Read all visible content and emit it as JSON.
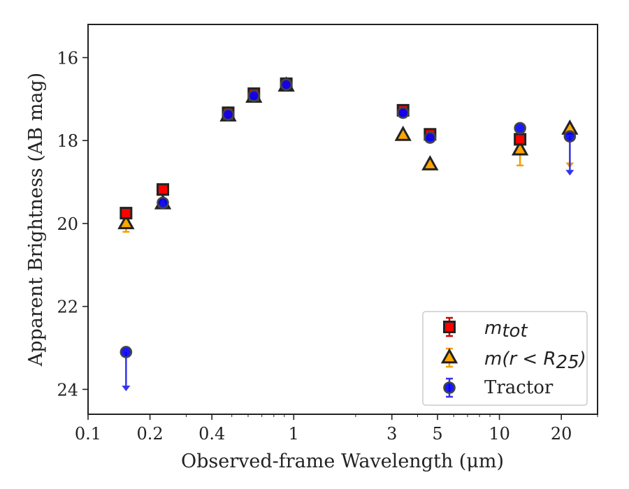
{
  "chart_data": {
    "type": "scatter",
    "xlabel": "Observed-frame Wavelength (μm)",
    "ylabel": "Apparent Brightness (AB mag)",
    "x_scale": "log",
    "xlim": [
      0.1,
      30
    ],
    "ylim": [
      24.6,
      15.2
    ],
    "y_inverted": true,
    "x_ticks": [
      0.1,
      0.2,
      0.4,
      1,
      3,
      5,
      10,
      20
    ],
    "x_tick_labels": [
      "0.1",
      "0.2",
      "0.4",
      "1",
      "3",
      "5",
      "10",
      "20"
    ],
    "y_ticks": [
      16,
      18,
      20,
      22,
      24
    ],
    "y_tick_labels": [
      "16",
      "18",
      "20",
      "22",
      "24"
    ],
    "grid": false,
    "legend_position": "lower-right",
    "series": [
      {
        "name": "m_tot",
        "legend_main": "m",
        "legend_sub": "tot",
        "marker": "square",
        "face_color": "#ff0000",
        "errorbar_color": "#cc0000",
        "points": [
          {
            "x": 0.153,
            "y": 19.75
          },
          {
            "x": 0.231,
            "y": 19.18
          },
          {
            "x": 0.48,
            "y": 17.33
          },
          {
            "x": 0.64,
            "y": 16.87
          },
          {
            "x": 0.92,
            "y": 16.63
          },
          {
            "x": 3.4,
            "y": 17.27
          },
          {
            "x": 4.6,
            "y": 17.85
          },
          {
            "x": 12.6,
            "y": 17.97,
            "yerr": 0.1
          }
        ]
      },
      {
        "name": "m(r < R25)",
        "legend_main": "m(r < R",
        "legend_sub": "25",
        "legend_end": ")",
        "marker": "triangle",
        "face_color": "#ffa500",
        "errorbar_color": "#f0a000",
        "points": [
          {
            "x": 0.153,
            "y": 20.0,
            "yerr": 0.2
          },
          {
            "x": 0.231,
            "y": 19.52
          },
          {
            "x": 0.48,
            "y": 17.4
          },
          {
            "x": 0.64,
            "y": 16.95
          },
          {
            "x": 0.92,
            "y": 16.68
          },
          {
            "x": 3.4,
            "y": 17.87
          },
          {
            "x": 4.6,
            "y": 18.58
          },
          {
            "x": 12.6,
            "y": 18.22,
            "yerr": 0.38
          },
          {
            "x": 22.0,
            "y": 17.72,
            "upper_limit": true
          }
        ]
      },
      {
        "name": "Tractor",
        "legend_main": "Tractor",
        "marker": "circle",
        "face_color": "#0000ff",
        "errorbar_color": "#3333ee",
        "points": [
          {
            "x": 0.153,
            "y": 23.1,
            "upper_limit": true
          },
          {
            "x": 0.231,
            "y": 19.5
          },
          {
            "x": 0.48,
            "y": 17.37
          },
          {
            "x": 0.64,
            "y": 16.92
          },
          {
            "x": 0.92,
            "y": 16.65
          },
          {
            "x": 3.4,
            "y": 17.33
          },
          {
            "x": 4.6,
            "y": 17.93
          },
          {
            "x": 12.6,
            "y": 17.7
          },
          {
            "x": 22.0,
            "y": 17.9,
            "upper_limit": true
          }
        ]
      }
    ]
  }
}
